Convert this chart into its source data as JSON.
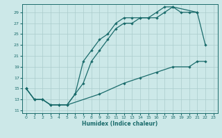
{
  "title": "",
  "xlabel": "Humidex (Indice chaleur)",
  "bg_color": "#cce8e8",
  "grid_color": "#aacccc",
  "line_color": "#1a6b6b",
  "xlim": [
    -0.5,
    23.5
  ],
  "ylim": [
    10.5,
    30.5
  ],
  "xticks": [
    0,
    1,
    2,
    3,
    4,
    5,
    6,
    7,
    8,
    9,
    10,
    11,
    12,
    13,
    14,
    15,
    16,
    17,
    18,
    19,
    20,
    21,
    22,
    23
  ],
  "yticks": [
    11,
    13,
    15,
    17,
    19,
    21,
    23,
    25,
    27,
    29
  ],
  "line1_x": [
    0,
    1,
    2,
    3,
    4,
    5,
    6,
    7,
    8,
    9,
    10,
    11,
    12,
    13,
    14,
    15,
    16,
    17,
    18,
    21,
    22
  ],
  "line1_y": [
    15,
    13,
    13,
    12,
    12,
    12,
    14,
    20,
    22,
    24,
    25,
    27,
    28,
    28,
    28,
    28,
    29,
    30,
    30,
    29,
    23
  ],
  "line2_x": [
    0,
    1,
    2,
    3,
    4,
    5,
    6,
    7,
    8,
    9,
    10,
    11,
    12,
    13,
    14,
    15,
    16,
    17,
    18,
    19,
    20,
    21
  ],
  "line2_y": [
    15,
    13,
    13,
    12,
    12,
    12,
    14,
    16,
    20,
    22,
    24,
    26,
    27,
    27,
    28,
    28,
    28,
    29,
    30,
    29,
    29,
    29
  ],
  "line3_x": [
    0,
    1,
    2,
    3,
    4,
    5,
    9,
    12,
    14,
    16,
    18,
    20,
    21,
    22
  ],
  "line3_y": [
    15,
    13,
    13,
    12,
    12,
    12,
    14,
    16,
    17,
    18,
    19,
    19,
    20,
    20
  ]
}
